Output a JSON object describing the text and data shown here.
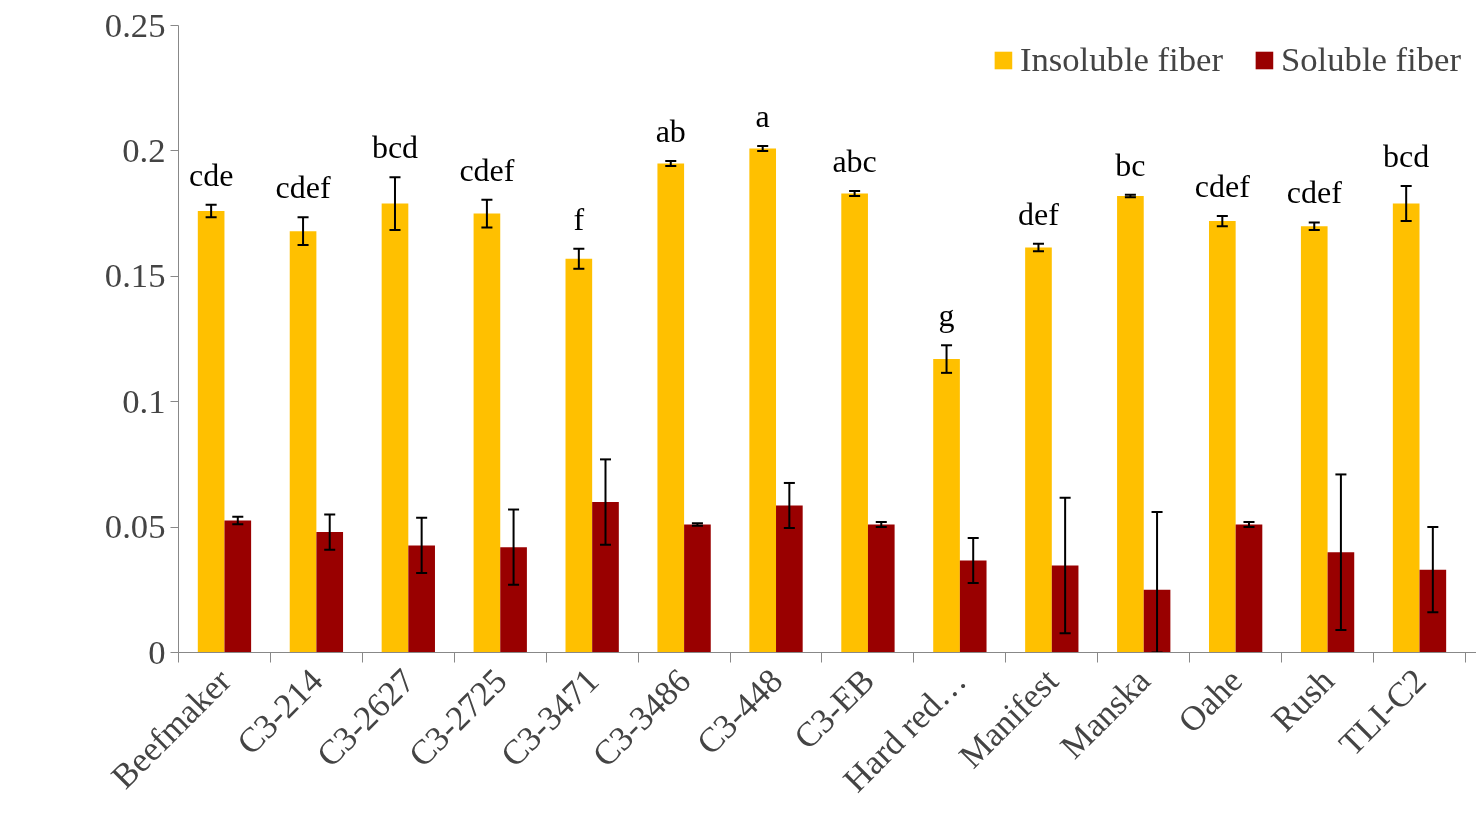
{
  "chart_data": {
    "type": "bar",
    "categories": [
      "Beefmaker",
      "C3-214",
      "C3-2627",
      "C3-2725",
      "C3-3471",
      "C3-3486",
      "C3-448",
      "C3-EB",
      "Hard red…",
      "Manifest",
      "Manska",
      "Oahe",
      "Rush",
      "TLI-C2"
    ],
    "series": [
      {
        "name": "Insoluble fiber",
        "color": "#ffc000",
        "values": [
          0.176,
          0.168,
          0.179,
          0.175,
          0.157,
          0.195,
          0.201,
          0.183,
          0.117,
          0.1615,
          0.182,
          0.172,
          0.17,
          0.179
        ],
        "errors": [
          0.0025,
          0.0055,
          0.0105,
          0.0055,
          0.004,
          0.001,
          0.001,
          0.001,
          0.0055,
          0.0015,
          0.0005,
          0.002,
          0.0015,
          0.007
        ]
      },
      {
        "name": "Soluble fiber",
        "color": "#990000",
        "values": [
          0.0526,
          0.048,
          0.0427,
          0.042,
          0.06,
          0.051,
          0.0586,
          0.051,
          0.0367,
          0.0347,
          0.025,
          0.051,
          0.04,
          0.033
        ],
        "errors": [
          0.0015,
          0.007,
          0.011,
          0.015,
          0.017,
          0.0005,
          0.009,
          0.001,
          0.009,
          0.027,
          [
            0,
            0.056
          ],
          0.001,
          0.031,
          0.017
        ]
      }
    ],
    "annotations": [
      {
        "text": "cde",
        "x": "Beefmaker",
        "y": 0.176
      },
      {
        "text": "cdef",
        "x": "C3-214",
        "y": 0.168
      },
      {
        "text": "bcd",
        "x": "C3-2627",
        "y": 0.179
      },
      {
        "text": "cdef",
        "x": "C3-2725",
        "y": 0.175
      },
      {
        "text": "f",
        "x": "C3-3471",
        "y": 0.157
      },
      {
        "text": "ab",
        "x": "C3-3486",
        "y": 0.195
      },
      {
        "text": "a",
        "x": "C3-448",
        "y": 0.201
      },
      {
        "text": "abc",
        "x": "C3-EB",
        "y": 0.183
      },
      {
        "text": "g",
        "x": "Hard red…",
        "y": 0.117
      },
      {
        "text": "def",
        "x": "Manifest",
        "y": 0.1615
      },
      {
        "text": "bc",
        "x": "Manska",
        "y": 0.182
      },
      {
        "text": "cdef",
        "x": "Oahe",
        "y": 0.172
      },
      {
        "text": "cdef",
        "x": "Rush",
        "y": 0.17
      },
      {
        "text": "bcd",
        "x": "TLI-C2",
        "y": 0.179
      }
    ],
    "ylim": [
      0,
      0.25
    ],
    "yticks": [
      0,
      0.05,
      0.1,
      0.15,
      0.2,
      0.25
    ],
    "grid": false,
    "legend": "top right"
  }
}
